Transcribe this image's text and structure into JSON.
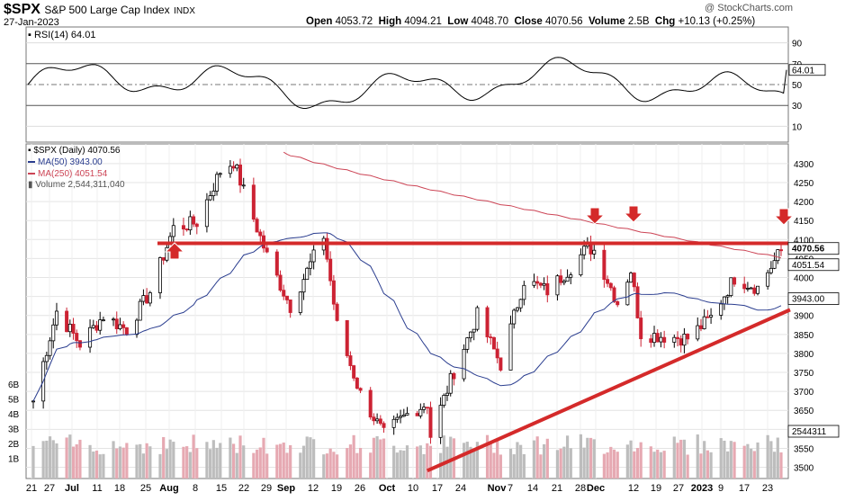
{
  "header": {
    "symbol": "$SPX",
    "name": "S&P 500 Large Cap Index",
    "exchange": "INDX",
    "date": "27-Jan-2023",
    "watermark": "@ StockCharts.com",
    "open_label": "Open",
    "open": "4053.72",
    "high_label": "High",
    "high": "4094.21",
    "low_label": "Low",
    "low": "4048.70",
    "close_label": "Close",
    "close": "4070.56",
    "volume_label": "Volume",
    "volume": "2.5B",
    "chg_label": "Chg",
    "chg": "+10.13 (+0.25%)"
  },
  "rsi": {
    "label": "RSI(14) 64.01",
    "current": "64.01",
    "ticks": [
      "90",
      "70",
      "50",
      "30",
      "10"
    ]
  },
  "legend": {
    "price": "$SPX (Daily) 4070.56",
    "ma50": "MA(50) 3943.00",
    "ma250": "MA(250) 4051.54",
    "volume": "Volume 2,544,311,040"
  },
  "colors": {
    "up": "#000000",
    "down": "#cc2233",
    "ma50": "#2a3d8f",
    "ma250": "#cc4455",
    "trend": "#d42a2a",
    "volume": "#e6a9b2",
    "volume_up": "#bdbdbd"
  },
  "chart_data": {
    "type": "candlestick",
    "price_ticks": [
      "4300",
      "4250",
      "4200",
      "4150",
      "4100",
      "4050",
      "4000",
      "3950",
      "3900",
      "3850",
      "3800",
      "3750",
      "3700",
      "3650",
      "3600",
      "3550",
      "3500"
    ],
    "price_range": [
      3480,
      4340
    ],
    "volume_ticks": [
      "6B",
      "5B",
      "4B",
      "3B",
      "2B",
      "1B"
    ],
    "x_labels": [
      "21",
      "27",
      "Jul",
      "11",
      "18",
      "25",
      "Aug",
      "8",
      "15",
      "22",
      "29",
      "Sep",
      "12",
      "19",
      "26",
      "Oct",
      "10",
      "17",
      "24",
      "Nov",
      "7",
      "14",
      "21",
      "28",
      "Dec",
      "12",
      "19",
      "27",
      "2023",
      "9",
      "17",
      "23"
    ],
    "price_badges": {
      "close": "4070.56",
      "ma250": "4051.54",
      "ma50": "3943.00",
      "volume": "2544311"
    },
    "resistance_level": 4090,
    "support_line": [
      {
        "date": "2022-10-13",
        "value": 3491
      },
      {
        "date": "2023-01-27",
        "value": 3915
      }
    ],
    "closes": [
      {
        "date": "2022-06-17",
        "value": 3675
      },
      {
        "date": "2022-06-24",
        "value": 3911
      },
      {
        "date": "2022-07-01",
        "value": 3825
      },
      {
        "date": "2022-07-08",
        "value": 3899
      },
      {
        "date": "2022-07-15",
        "value": 3863
      },
      {
        "date": "2022-07-22",
        "value": 3962
      },
      {
        "date": "2022-07-29",
        "value": 4130
      },
      {
        "date": "2022-08-05",
        "value": 4145
      },
      {
        "date": "2022-08-12",
        "value": 4280
      },
      {
        "date": "2022-08-16",
        "value": 4305
      },
      {
        "date": "2022-08-19",
        "value": 4228
      },
      {
        "date": "2022-08-26",
        "value": 4057
      },
      {
        "date": "2022-09-02",
        "value": 3924
      },
      {
        "date": "2022-09-12",
        "value": 4110
      },
      {
        "date": "2022-09-16",
        "value": 3873
      },
      {
        "date": "2022-09-23",
        "value": 3693
      },
      {
        "date": "2022-09-30",
        "value": 3586
      },
      {
        "date": "2022-10-07",
        "value": 3640
      },
      {
        "date": "2022-10-13",
        "value": 3669
      },
      {
        "date": "2022-10-14",
        "value": 3583
      },
      {
        "date": "2022-10-21",
        "value": 3753
      },
      {
        "date": "2022-10-28",
        "value": 3901
      },
      {
        "date": "2022-11-04",
        "value": 3771
      },
      {
        "date": "2022-11-11",
        "value": 3993
      },
      {
        "date": "2022-11-18",
        "value": 3965
      },
      {
        "date": "2022-11-25",
        "value": 4026
      },
      {
        "date": "2022-11-30",
        "value": 4080
      },
      {
        "date": "2022-12-02",
        "value": 4072
      },
      {
        "date": "2022-12-09",
        "value": 3934
      },
      {
        "date": "2022-12-13",
        "value": 4020
      },
      {
        "date": "2022-12-16",
        "value": 3852
      },
      {
        "date": "2022-12-23",
        "value": 3845
      },
      {
        "date": "2022-12-30",
        "value": 3840
      },
      {
        "date": "2023-01-06",
        "value": 3895
      },
      {
        "date": "2023-01-13",
        "value": 3999
      },
      {
        "date": "2023-01-20",
        "value": 3973
      },
      {
        "date": "2023-01-27",
        "value": 4071
      }
    ]
  }
}
